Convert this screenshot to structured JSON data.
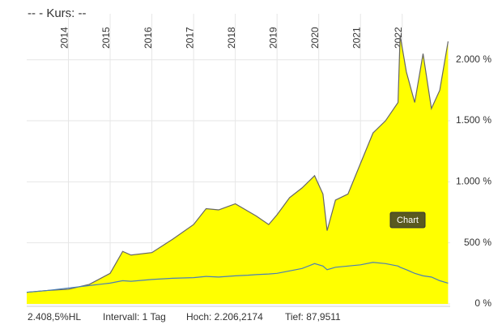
{
  "chart_data": {
    "type": "area-line",
    "title": "--  - Kurs: --",
    "x": [
      2013.0,
      2013.5,
      2014.0,
      2014.5,
      2015.0,
      2015.3,
      2015.5,
      2016.0,
      2016.5,
      2017.0,
      2017.3,
      2017.6,
      2018.0,
      2018.3,
      2018.5,
      2018.8,
      2019.0,
      2019.3,
      2019.6,
      2019.9,
      2020.1,
      2020.2,
      2020.4,
      2020.7,
      2021.0,
      2021.3,
      2021.6,
      2021.9,
      2021.95,
      2022.1,
      2022.3,
      2022.5,
      2022.7,
      2022.9,
      2023.1
    ],
    "series": [
      {
        "color": "#666666",
        "fill": "#ffff00",
        "values": [
          95,
          110,
          120,
          160,
          250,
          430,
          400,
          420,
          530,
          650,
          780,
          770,
          820,
          760,
          720,
          650,
          730,
          870,
          950,
          1050,
          900,
          600,
          850,
          900,
          1150,
          1400,
          1500,
          1650,
          2200,
          1900,
          1650,
          2050,
          1600,
          1750,
          2150
        ]
      },
      {
        "color": "#4a7fb5",
        "values": [
          95,
          110,
          130,
          150,
          170,
          190,
          185,
          200,
          210,
          215,
          225,
          220,
          230,
          235,
          240,
          245,
          250,
          270,
          290,
          330,
          310,
          280,
          300,
          310,
          320,
          340,
          330,
          310,
          300,
          280,
          250,
          230,
          220,
          190,
          170
        ]
      }
    ],
    "xlim": [
      2013.0,
      2023.15
    ],
    "xticks": [
      2014,
      2015,
      2016,
      2017,
      2018,
      2019,
      2020,
      2021,
      2022
    ],
    "ylim": [
      0,
      2350
    ],
    "yticks": [
      {
        "value": 0,
        "label": "0 %"
      },
      {
        "value": 500,
        "label": "500 %"
      },
      {
        "value": 1000,
        "label": "1.000 %"
      },
      {
        "value": 1500,
        "label": "1.500 %"
      },
      {
        "value": 2000,
        "label": "2.000 %"
      }
    ],
    "grid": true,
    "footer": [
      "2.408,5%HL",
      "Intervall: 1 Tag",
      "Hoch: 2.206,2174",
      "Tief: 87,9511"
    ],
    "button": "Chart"
  }
}
